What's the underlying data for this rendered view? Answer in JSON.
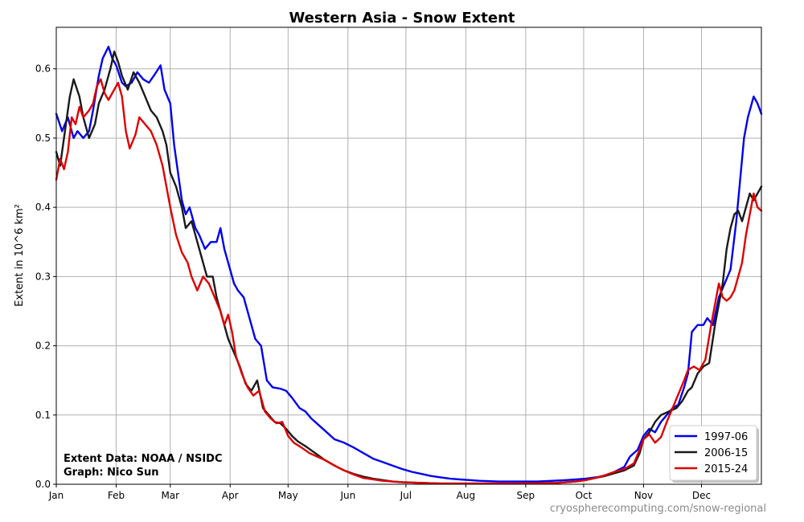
{
  "chart_data": {
    "type": "line",
    "title": "Western Asia - Snow Extent",
    "ylabel": "Extent in 10^6 km²",
    "xlabel": "",
    "x_ticks": [
      "Jan",
      "Feb",
      "Mar",
      "Apr",
      "May",
      "Jun",
      "Jul",
      "Aug",
      "Sep",
      "Oct",
      "Nov",
      "Dec"
    ],
    "x_tick_days": [
      1,
      32,
      60,
      91,
      121,
      152,
      182,
      213,
      244,
      274,
      305,
      335
    ],
    "xlim": [
      1,
      366
    ],
    "y_ticks": [
      "0.0",
      "0.1",
      "0.2",
      "0.3",
      "0.4",
      "0.5",
      "0.6"
    ],
    "y_tick_values": [
      0,
      0.1,
      0.2,
      0.3,
      0.4,
      0.5,
      0.6
    ],
    "ylim": [
      0,
      0.66
    ],
    "grid": true,
    "legend_position": "bottom-right",
    "annotation_lines": [
      "Extent Data: NOAA / NSIDC",
      "Graph: Nico Sun"
    ],
    "watermark": "cryospherecomputing.com/snow-regional",
    "series": [
      {
        "name": "1997-06",
        "color": "#0000ee",
        "points": [
          [
            1,
            0.535
          ],
          [
            4,
            0.51
          ],
          [
            7,
            0.53
          ],
          [
            10,
            0.5
          ],
          [
            12,
            0.51
          ],
          [
            15,
            0.5
          ],
          [
            18,
            0.51
          ],
          [
            20,
            0.54
          ],
          [
            23,
            0.59
          ],
          [
            25,
            0.615
          ],
          [
            28,
            0.632
          ],
          [
            30,
            0.615
          ],
          [
            32,
            0.605
          ],
          [
            35,
            0.58
          ],
          [
            37,
            0.575
          ],
          [
            40,
            0.58
          ],
          [
            43,
            0.595
          ],
          [
            46,
            0.585
          ],
          [
            49,
            0.58
          ],
          [
            52,
            0.592
          ],
          [
            55,
            0.605
          ],
          [
            57,
            0.57
          ],
          [
            60,
            0.55
          ],
          [
            62,
            0.49
          ],
          [
            64,
            0.45
          ],
          [
            66,
            0.41
          ],
          [
            68,
            0.39
          ],
          [
            70,
            0.4
          ],
          [
            73,
            0.37
          ],
          [
            75,
            0.36
          ],
          [
            78,
            0.34
          ],
          [
            81,
            0.35
          ],
          [
            84,
            0.35
          ],
          [
            86,
            0.37
          ],
          [
            88,
            0.34
          ],
          [
            90,
            0.32
          ],
          [
            93,
            0.29
          ],
          [
            95,
            0.28
          ],
          [
            98,
            0.27
          ],
          [
            101,
            0.24
          ],
          [
            104,
            0.21
          ],
          [
            107,
            0.2
          ],
          [
            110,
            0.15
          ],
          [
            113,
            0.14
          ],
          [
            117,
            0.138
          ],
          [
            120,
            0.135
          ],
          [
            123,
            0.125
          ],
          [
            127,
            0.11
          ],
          [
            130,
            0.105
          ],
          [
            133,
            0.095
          ],
          [
            137,
            0.085
          ],
          [
            141,
            0.075
          ],
          [
            145,
            0.065
          ],
          [
            150,
            0.06
          ],
          [
            155,
            0.053
          ],
          [
            160,
            0.045
          ],
          [
            165,
            0.037
          ],
          [
            170,
            0.032
          ],
          [
            175,
            0.027
          ],
          [
            180,
            0.022
          ],
          [
            185,
            0.018
          ],
          [
            190,
            0.015
          ],
          [
            195,
            0.012
          ],
          [
            200,
            0.01
          ],
          [
            205,
            0.008
          ],
          [
            210,
            0.007
          ],
          [
            215,
            0.006
          ],
          [
            220,
            0.005
          ],
          [
            230,
            0.004
          ],
          [
            240,
            0.004
          ],
          [
            250,
            0.004
          ],
          [
            258,
            0.005
          ],
          [
            265,
            0.006
          ],
          [
            270,
            0.007
          ],
          [
            275,
            0.008
          ],
          [
            280,
            0.01
          ],
          [
            285,
            0.012
          ],
          [
            290,
            0.018
          ],
          [
            295,
            0.025
          ],
          [
            298,
            0.04
          ],
          [
            302,
            0.05
          ],
          [
            305,
            0.07
          ],
          [
            308,
            0.08
          ],
          [
            311,
            0.075
          ],
          [
            314,
            0.09
          ],
          [
            317,
            0.1
          ],
          [
            320,
            0.11
          ],
          [
            323,
            0.115
          ],
          [
            326,
            0.14
          ],
          [
            328,
            0.16
          ],
          [
            330,
            0.22
          ],
          [
            333,
            0.23
          ],
          [
            336,
            0.23
          ],
          [
            338,
            0.24
          ],
          [
            341,
            0.23
          ],
          [
            344,
            0.27
          ],
          [
            347,
            0.29
          ],
          [
            350,
            0.31
          ],
          [
            353,
            0.38
          ],
          [
            355,
            0.44
          ],
          [
            357,
            0.5
          ],
          [
            359,
            0.53
          ],
          [
            362,
            0.56
          ],
          [
            364,
            0.55
          ],
          [
            366,
            0.535
          ]
        ]
      },
      {
        "name": "2006-15",
        "color": "#1a1a1a",
        "points": [
          [
            1,
            0.48
          ],
          [
            3,
            0.46
          ],
          [
            5,
            0.5
          ],
          [
            8,
            0.56
          ],
          [
            10,
            0.585
          ],
          [
            13,
            0.56
          ],
          [
            15,
            0.53
          ],
          [
            18,
            0.5
          ],
          [
            21,
            0.52
          ],
          [
            23,
            0.55
          ],
          [
            26,
            0.57
          ],
          [
            29,
            0.6
          ],
          [
            31,
            0.625
          ],
          [
            33,
            0.61
          ],
          [
            35,
            0.59
          ],
          [
            38,
            0.57
          ],
          [
            41,
            0.595
          ],
          [
            44,
            0.58
          ],
          [
            47,
            0.56
          ],
          [
            50,
            0.54
          ],
          [
            53,
            0.53
          ],
          [
            56,
            0.51
          ],
          [
            58,
            0.49
          ],
          [
            60,
            0.45
          ],
          [
            63,
            0.43
          ],
          [
            66,
            0.4
          ],
          [
            68,
            0.37
          ],
          [
            71,
            0.38
          ],
          [
            73,
            0.36
          ],
          [
            76,
            0.33
          ],
          [
            79,
            0.3
          ],
          [
            82,
            0.3
          ],
          [
            84,
            0.27
          ],
          [
            87,
            0.24
          ],
          [
            90,
            0.21
          ],
          [
            93,
            0.19
          ],
          [
            96,
            0.17
          ],
          [
            99,
            0.145
          ],
          [
            102,
            0.135
          ],
          [
            105,
            0.15
          ],
          [
            108,
            0.11
          ],
          [
            111,
            0.1
          ],
          [
            114,
            0.09
          ],
          [
            117,
            0.088
          ],
          [
            120,
            0.08
          ],
          [
            123,
            0.07
          ],
          [
            126,
            0.062
          ],
          [
            130,
            0.055
          ],
          [
            135,
            0.045
          ],
          [
            140,
            0.035
          ],
          [
            145,
            0.027
          ],
          [
            150,
            0.02
          ],
          [
            155,
            0.015
          ],
          [
            160,
            0.011
          ],
          [
            165,
            0.008
          ],
          [
            170,
            0.006
          ],
          [
            175,
            0.004
          ],
          [
            180,
            0.003
          ],
          [
            190,
            0.002
          ],
          [
            200,
            0.001
          ],
          [
            220,
            0.001
          ],
          [
            240,
            0.001
          ],
          [
            260,
            0.002
          ],
          [
            270,
            0.004
          ],
          [
            275,
            0.006
          ],
          [
            280,
            0.009
          ],
          [
            285,
            0.012
          ],
          [
            290,
            0.016
          ],
          [
            295,
            0.02
          ],
          [
            300,
            0.027
          ],
          [
            303,
            0.045
          ],
          [
            305,
            0.065
          ],
          [
            308,
            0.075
          ],
          [
            311,
            0.09
          ],
          [
            314,
            0.1
          ],
          [
            318,
            0.105
          ],
          [
            322,
            0.11
          ],
          [
            325,
            0.12
          ],
          [
            328,
            0.135
          ],
          [
            330,
            0.14
          ],
          [
            333,
            0.16
          ],
          [
            336,
            0.17
          ],
          [
            339,
            0.175
          ],
          [
            342,
            0.23
          ],
          [
            344,
            0.26
          ],
          [
            346,
            0.29
          ],
          [
            348,
            0.34
          ],
          [
            350,
            0.37
          ],
          [
            352,
            0.39
          ],
          [
            354,
            0.395
          ],
          [
            356,
            0.38
          ],
          [
            358,
            0.4
          ],
          [
            360,
            0.42
          ],
          [
            362,
            0.41
          ],
          [
            364,
            0.42
          ],
          [
            366,
            0.43
          ]
        ]
      },
      {
        "name": "2015-24",
        "color": "#dd0000",
        "points": [
          [
            1,
            0.44
          ],
          [
            3,
            0.47
          ],
          [
            5,
            0.455
          ],
          [
            7,
            0.48
          ],
          [
            9,
            0.53
          ],
          [
            11,
            0.52
          ],
          [
            13,
            0.545
          ],
          [
            15,
            0.53
          ],
          [
            18,
            0.54
          ],
          [
            20,
            0.55
          ],
          [
            22,
            0.575
          ],
          [
            24,
            0.585
          ],
          [
            26,
            0.565
          ],
          [
            28,
            0.555
          ],
          [
            31,
            0.57
          ],
          [
            33,
            0.58
          ],
          [
            35,
            0.56
          ],
          [
            37,
            0.51
          ],
          [
            39,
            0.485
          ],
          [
            42,
            0.505
          ],
          [
            44,
            0.53
          ],
          [
            47,
            0.52
          ],
          [
            50,
            0.51
          ],
          [
            53,
            0.49
          ],
          [
            56,
            0.46
          ],
          [
            58,
            0.43
          ],
          [
            60,
            0.4
          ],
          [
            63,
            0.36
          ],
          [
            66,
            0.335
          ],
          [
            69,
            0.32
          ],
          [
            71,
            0.3
          ],
          [
            74,
            0.28
          ],
          [
            77,
            0.3
          ],
          [
            80,
            0.29
          ],
          [
            83,
            0.27
          ],
          [
            86,
            0.25
          ],
          [
            88,
            0.23
          ],
          [
            90,
            0.245
          ],
          [
            92,
            0.22
          ],
          [
            94,
            0.185
          ],
          [
            97,
            0.16
          ],
          [
            100,
            0.14
          ],
          [
            103,
            0.128
          ],
          [
            106,
            0.135
          ],
          [
            109,
            0.105
          ],
          [
            112,
            0.095
          ],
          [
            115,
            0.088
          ],
          [
            118,
            0.09
          ],
          [
            121,
            0.07
          ],
          [
            124,
            0.06
          ],
          [
            128,
            0.053
          ],
          [
            132,
            0.045
          ],
          [
            136,
            0.04
          ],
          [
            140,
            0.035
          ],
          [
            145,
            0.027
          ],
          [
            150,
            0.02
          ],
          [
            155,
            0.014
          ],
          [
            160,
            0.009
          ],
          [
            165,
            0.007
          ],
          [
            170,
            0.005
          ],
          [
            175,
            0.004
          ],
          [
            180,
            0.003
          ],
          [
            190,
            0.002
          ],
          [
            200,
            0.001
          ],
          [
            220,
            0.001
          ],
          [
            240,
            0.001
          ],
          [
            260,
            0.002
          ],
          [
            270,
            0.004
          ],
          [
            275,
            0.006
          ],
          [
            280,
            0.009
          ],
          [
            285,
            0.013
          ],
          [
            290,
            0.018
          ],
          [
            295,
            0.022
          ],
          [
            300,
            0.03
          ],
          [
            303,
            0.05
          ],
          [
            305,
            0.065
          ],
          [
            308,
            0.072
          ],
          [
            311,
            0.06
          ],
          [
            314,
            0.068
          ],
          [
            317,
            0.09
          ],
          [
            320,
            0.11
          ],
          [
            323,
            0.13
          ],
          [
            326,
            0.15
          ],
          [
            328,
            0.165
          ],
          [
            331,
            0.17
          ],
          [
            334,
            0.165
          ],
          [
            337,
            0.18
          ],
          [
            340,
            0.23
          ],
          [
            342,
            0.26
          ],
          [
            344,
            0.29
          ],
          [
            346,
            0.27
          ],
          [
            348,
            0.265
          ],
          [
            350,
            0.27
          ],
          [
            352,
            0.28
          ],
          [
            354,
            0.3
          ],
          [
            356,
            0.32
          ],
          [
            358,
            0.36
          ],
          [
            360,
            0.39
          ],
          [
            362,
            0.42
          ],
          [
            364,
            0.4
          ],
          [
            366,
            0.395
          ]
        ]
      }
    ]
  }
}
